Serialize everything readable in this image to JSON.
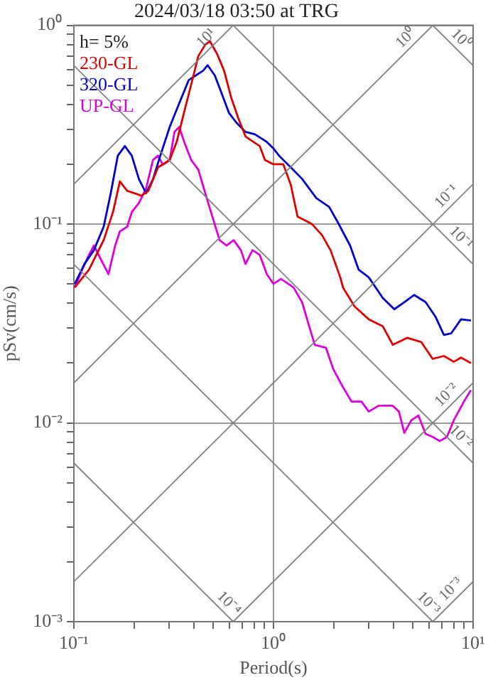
{
  "chart_data": {
    "type": "line",
    "title": "2024/03/18 03:50 at TRG",
    "xlabel": "Period(s)",
    "ylabel": "pSv(cm/s)",
    "log": "xy",
    "grid": true,
    "legend": "top left",
    "marker": "none",
    "line_style": "solid",
    "xlim": [
      0.1,
      10
    ],
    "ylim": [
      0.001,
      1
    ],
    "xticks": [
      {
        "value": 0.1,
        "label": "10⁻¹"
      },
      {
        "value": 0.2,
        "label": null
      },
      {
        "value": 0.3,
        "label": null
      },
      {
        "value": 0.4,
        "label": null
      },
      {
        "value": 0.5,
        "label": null
      },
      {
        "value": 0.6,
        "label": null
      },
      {
        "value": 0.7,
        "label": null
      },
      {
        "value": 0.8,
        "label": null
      },
      {
        "value": 0.9,
        "label": null
      },
      {
        "value": 1,
        "label": "10⁰"
      },
      {
        "value": 2,
        "label": null
      },
      {
        "value": 3,
        "label": null
      },
      {
        "value": 4,
        "label": null
      },
      {
        "value": 5,
        "label": null
      },
      {
        "value": 6,
        "label": null
      },
      {
        "value": 7,
        "label": null
      },
      {
        "value": 8,
        "label": null
      },
      {
        "value": 9,
        "label": null
      },
      {
        "value": 10,
        "label": "10¹"
      }
    ],
    "yticks": [
      {
        "value": 0.001,
        "label": "10⁻³"
      },
      {
        "value": 0.002,
        "label": null
      },
      {
        "value": 0.003,
        "label": null
      },
      {
        "value": 0.004,
        "label": null
      },
      {
        "value": 0.005,
        "label": null
      },
      {
        "value": 0.006,
        "label": null
      },
      {
        "value": 0.007,
        "label": null
      },
      {
        "value": 0.008,
        "label": null
      },
      {
        "value": 0.009,
        "label": null
      },
      {
        "value": 0.01,
        "label": "10⁻²"
      },
      {
        "value": 0.02,
        "label": null
      },
      {
        "value": 0.03,
        "label": null
      },
      {
        "value": 0.04,
        "label": null
      },
      {
        "value": 0.05,
        "label": null
      },
      {
        "value": 0.06,
        "label": null
      },
      {
        "value": 0.07,
        "label": null
      },
      {
        "value": 0.08,
        "label": null
      },
      {
        "value": 0.09,
        "label": null
      },
      {
        "value": 0.1,
        "label": "10⁻¹"
      },
      {
        "value": 0.2,
        "label": null
      },
      {
        "value": 0.3,
        "label": null
      },
      {
        "value": 0.4,
        "label": null
      },
      {
        "value": 0.5,
        "label": null
      },
      {
        "value": 0.6,
        "label": null
      },
      {
        "value": 0.7,
        "label": null
      },
      {
        "value": 0.8,
        "label": null
      },
      {
        "value": 0.9,
        "label": null
      },
      {
        "value": 1,
        "label": "10⁰"
      }
    ],
    "annotations": [
      "h= 5%",
      {
        "text": "10¹",
        "x": 0.5,
        "y": 0.795
      },
      {
        "text": "10⁰",
        "x": 5,
        "y": 0.795
      },
      {
        "text": "10⁰",
        "x": 8,
        "y": 0.785
      },
      {
        "text": "10⁻¹",
        "x": 8,
        "y": 0.127
      },
      {
        "text": "10⁻¹",
        "x": 8,
        "y": 0.0785
      },
      {
        "text": "10⁻²",
        "x": 8,
        "y": 0.0127
      },
      {
        "text": "10⁻²",
        "x": 8,
        "y": 0.00785
      },
      {
        "text": "10⁻³",
        "x": 8.4,
        "y": 0.00134
      },
      {
        "text": "10⁻³",
        "x": 5.5,
        "y": 0.00114
      },
      {
        "text": "10⁻⁴",
        "x": 0.55,
        "y": 0.00114
      }
    ],
    "series": [
      {
        "color": "#808080",
        "x": [
          6.28,
          10
        ],
        "values": [
          1,
          0.628
        ]
      },
      {
        "color": "#808080",
        "x": [
          0.628,
          10
        ],
        "values": [
          1,
          0.0628
        ]
      },
      {
        "color": "#808080",
        "x": [
          0.1,
          10
        ],
        "values": [
          0.628,
          0.00628
        ]
      },
      {
        "color": "#808080",
        "x": [
          0.1,
          6.28
        ],
        "values": [
          0.0628,
          0.001
        ]
      },
      {
        "color": "#808080",
        "x": [
          0.1,
          0.628
        ],
        "values": [
          0.00628,
          0.001
        ]
      },
      {
        "color": "#808080",
        "x": [
          0.1,
          0.628
        ],
        "values": [
          0.159,
          1
        ]
      },
      {
        "color": "#808080",
        "x": [
          0.1,
          6.28
        ],
        "values": [
          0.0159,
          1
        ]
      },
      {
        "color": "#808080",
        "x": [
          0.1,
          10
        ],
        "values": [
          0.00159,
          0.159
        ]
      },
      {
        "color": "#808080",
        "x": [
          0.628,
          10
        ],
        "values": [
          0.001,
          0.0159
        ]
      },
      {
        "color": "#808080",
        "x": [
          6.28,
          10
        ],
        "values": [
          0.001,
          0.00159
        ]
      },
      {
        "name": "230-GL",
        "color": "#dd0000",
        "x": [
          0.101,
          0.119,
          0.141,
          0.157,
          0.17,
          0.185,
          0.201,
          0.218,
          0.236,
          0.264,
          0.302,
          0.328,
          0.356,
          0.387,
          0.42,
          0.455,
          0.481,
          0.521,
          0.566,
          0.615,
          0.667,
          0.724,
          0.785,
          0.853,
          0.906,
          1.0,
          1.12,
          1.22,
          1.32,
          1.56,
          1.75,
          1.93,
          2.16,
          2.23,
          2.55,
          3.0,
          3.53,
          3.96,
          4.67,
          5.5,
          6.27,
          7.14,
          8.0,
          8.7,
          9.75
        ],
        "values": [
          0.048,
          0.059,
          0.083,
          0.115,
          0.164,
          0.147,
          0.143,
          0.139,
          0.147,
          0.193,
          0.21,
          0.261,
          0.363,
          0.504,
          0.7,
          0.8,
          0.83,
          0.72,
          0.59,
          0.43,
          0.34,
          0.276,
          0.261,
          0.247,
          0.21,
          0.2,
          0.2,
          0.158,
          0.109,
          0.1,
          0.088,
          0.074,
          0.054,
          0.048,
          0.0385,
          0.0332,
          0.0306,
          0.0247,
          0.0268,
          0.0255,
          0.021,
          0.0217,
          0.0203,
          0.0213,
          0.02
        ]
      },
      {
        "name": "320-GL",
        "color": "#0000cc",
        "x": [
          0.101,
          0.113,
          0.126,
          0.141,
          0.153,
          0.166,
          0.18,
          0.195,
          0.212,
          0.23,
          0.249,
          0.271,
          0.302,
          0.337,
          0.376,
          0.408,
          0.443,
          0.468,
          0.508,
          0.552,
          0.598,
          0.65,
          0.724,
          0.808,
          0.921,
          1.0,
          1.07,
          1.22,
          1.39,
          1.64,
          1.9,
          2.09,
          2.42,
          2.67,
          3.0,
          3.53,
          4.03,
          4.52,
          5.07,
          5.78,
          6.47,
          7.14,
          7.76,
          8.7,
          9.75
        ],
        "values": [
          0.05,
          0.063,
          0.074,
          0.097,
          0.143,
          0.221,
          0.247,
          0.221,
          0.168,
          0.143,
          0.168,
          0.221,
          0.308,
          0.405,
          0.53,
          0.56,
          0.59,
          0.63,
          0.56,
          0.45,
          0.363,
          0.325,
          0.291,
          0.283,
          0.26,
          0.24,
          0.22,
          0.193,
          0.169,
          0.135,
          0.122,
          0.103,
          0.078,
          0.059,
          0.054,
          0.0425,
          0.0373,
          0.0405,
          0.044,
          0.0405,
          0.0343,
          0.0277,
          0.0282,
          0.0332,
          0.0327
        ]
      },
      {
        "name": "UP-GL",
        "color": "#dd00dd",
        "x": [
          0.101,
          0.11,
          0.119,
          0.126,
          0.137,
          0.149,
          0.161,
          0.17,
          0.185,
          0.195,
          0.212,
          0.23,
          0.249,
          0.264,
          0.279,
          0.302,
          0.319,
          0.337,
          0.356,
          0.387,
          0.42,
          0.455,
          0.494,
          0.537,
          0.582,
          0.632,
          0.686,
          0.724,
          0.785,
          0.853,
          0.926,
          1.0,
          1.09,
          1.26,
          1.39,
          1.51,
          1.61,
          1.83,
          1.99,
          2.23,
          2.46,
          2.76,
          3.0,
          3.36,
          3.96,
          4.25,
          4.52,
          4.9,
          5.32,
          5.78,
          6.27,
          6.81,
          7.39,
          8.0,
          8.99,
          9.75
        ],
        "values": [
          0.048,
          0.059,
          0.07,
          0.078,
          0.066,
          0.056,
          0.078,
          0.092,
          0.097,
          0.115,
          0.128,
          0.151,
          0.21,
          0.221,
          0.199,
          0.21,
          0.291,
          0.308,
          0.261,
          0.21,
          0.188,
          0.143,
          0.109,
          0.083,
          0.078,
          0.083,
          0.074,
          0.063,
          0.074,
          0.07,
          0.056,
          0.05,
          0.053,
          0.048,
          0.0405,
          0.0306,
          0.0247,
          0.0239,
          0.0187,
          0.0151,
          0.0128,
          0.0128,
          0.0114,
          0.0122,
          0.0122,
          0.0114,
          0.0089,
          0.0103,
          0.0109,
          0.0088,
          0.0085,
          0.0081,
          0.0085,
          0.0103,
          0.0128,
          0.0146
        ]
      }
    ]
  }
}
